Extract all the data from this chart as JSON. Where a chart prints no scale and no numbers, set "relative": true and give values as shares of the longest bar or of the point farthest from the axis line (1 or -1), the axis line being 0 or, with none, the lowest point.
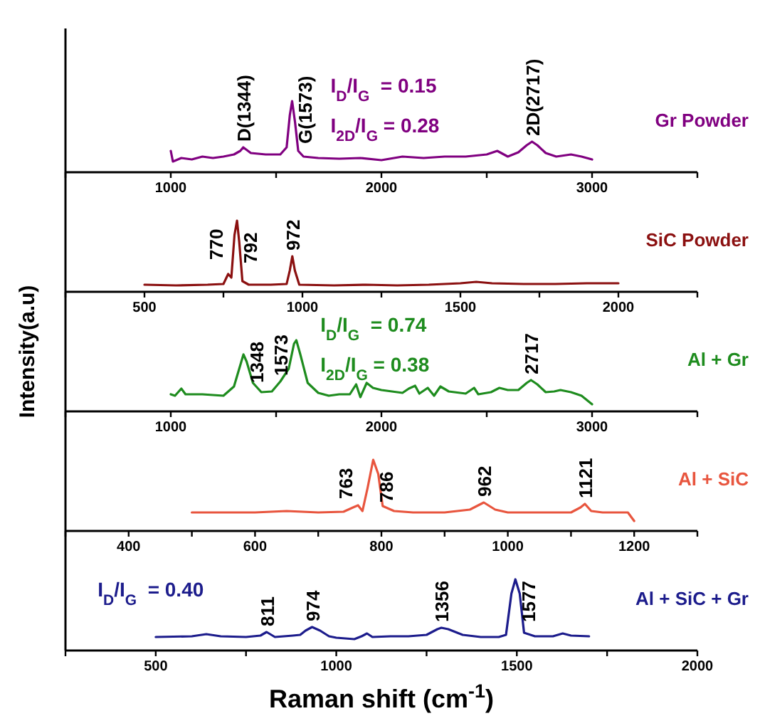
{
  "chart_data": [
    {
      "type": "line",
      "relative": true,
      "xlim": [
        500,
        3500
      ],
      "xticks": [
        {
          "value": 500,
          "label": null
        },
        1000,
        {
          "value": 1500,
          "label": null
        },
        2000,
        {
          "value": 2500,
          "label": null
        },
        3000,
        {
          "value": 3500,
          "label": null
        }
      ],
      "x": [
        1000,
        1010,
        1050,
        1100,
        1150,
        1200,
        1250,
        1300,
        1330,
        1344,
        1380,
        1450,
        1520,
        1550,
        1565,
        1576,
        1590,
        1605,
        1630,
        1700,
        1800,
        1900,
        2000,
        2100,
        2200,
        2300,
        2400,
        2500,
        2550,
        2600,
        2650,
        2690,
        2715,
        2740,
        2780,
        2830,
        2900,
        2950,
        3000
      ],
      "series": [
        {
          "name": "Gr Powder",
          "color": "#800080",
          "values": [
            0.3,
            0.15,
            0.2,
            0.18,
            0.22,
            0.2,
            0.22,
            0.25,
            0.3,
            0.35,
            0.27,
            0.25,
            0.25,
            0.35,
            0.8,
            1.0,
            0.7,
            0.3,
            0.22,
            0.2,
            0.19,
            0.2,
            0.17,
            0.22,
            0.2,
            0.22,
            0.22,
            0.25,
            0.3,
            0.22,
            0.28,
            0.38,
            0.43,
            0.38,
            0.27,
            0.22,
            0.25,
            0.22,
            0.18
          ]
        }
      ],
      "annotations": [
        {
          "text": "D(1344)",
          "x": 1344,
          "y": 0.35
        },
        {
          "text": "G(1573)",
          "x": 1576,
          "y": 1.0
        },
        {
          "text": "2D(2717)",
          "x": 2715,
          "y": 0.43
        },
        "I$_{D}$/I$_{G}$  = 0.15",
        "I$_{2D}$/I$_{G}$ = 0.28"
      ]
    },
    {
      "type": "line",
      "relative": true,
      "xlim": [
        250,
        2250
      ],
      "xticks": [
        {
          "value": 250,
          "label": null
        },
        500,
        {
          "value": 750,
          "label": null
        },
        1000,
        {
          "value": 1250,
          "label": null
        },
        1500,
        {
          "value": 1750,
          "label": null
        },
        2000,
        {
          "value": 2250,
          "label": null
        }
      ],
      "x": [
        500,
        600,
        700,
        750,
        765,
        775,
        785,
        793,
        800,
        810,
        830,
        900,
        950,
        960,
        968,
        976,
        990,
        1100,
        1200,
        1300,
        1400,
        1500,
        1550,
        1600,
        1700,
        1800,
        1900,
        2000
      ],
      "series": [
        {
          "name": "SiC Powder",
          "color": "#8b1010",
          "values": [
            0.1,
            0.09,
            0.1,
            0.11,
            0.25,
            0.2,
            0.8,
            1.0,
            0.7,
            0.15,
            0.1,
            0.1,
            0.11,
            0.3,
            0.5,
            0.3,
            0.1,
            0.09,
            0.1,
            0.09,
            0.1,
            0.12,
            0.14,
            0.12,
            0.11,
            0.11,
            0.12,
            0.12
          ]
        }
      ],
      "annotations": [
        {
          "text": "770",
          "x": 765,
          "y": 0.25
        },
        {
          "text": "792",
          "x": 793,
          "y": 1.0
        },
        {
          "text": "972",
          "x": 968,
          "y": 0.5
        }
      ]
    },
    {
      "type": "line",
      "relative": true,
      "xlim": [
        500,
        3500
      ],
      "xticks": [
        {
          "value": 500,
          "label": null
        },
        1000,
        {
          "value": 1500,
          "label": null
        },
        2000,
        {
          "value": 2500,
          "label": null
        },
        3000,
        {
          "value": 3500,
          "label": null
        }
      ],
      "ylabel": "Intensity(a.u)",
      "x": [
        1000,
        1020,
        1050,
        1070,
        1150,
        1200,
        1250,
        1300,
        1330,
        1345,
        1360,
        1390,
        1430,
        1480,
        1520,
        1560,
        1585,
        1596,
        1615,
        1650,
        1700,
        1750,
        1800,
        1850,
        1880,
        1900,
        1930,
        1960,
        2000,
        2050,
        2100,
        2130,
        2160,
        2180,
        2220,
        2250,
        2280,
        2320,
        2400,
        2440,
        2460,
        2520,
        2560,
        2600,
        2650,
        2690,
        2710,
        2740,
        2780,
        2820,
        2850,
        2900,
        2950,
        3000
      ],
      "series": [
        {
          "name": "Al + Gr",
          "color": "#1e8c1e",
          "values": [
            0.24,
            0.22,
            0.32,
            0.24,
            0.24,
            0.23,
            0.22,
            0.35,
            0.65,
            0.8,
            0.7,
            0.4,
            0.27,
            0.28,
            0.42,
            0.6,
            0.95,
            1.0,
            0.8,
            0.4,
            0.26,
            0.22,
            0.24,
            0.24,
            0.38,
            0.2,
            0.4,
            0.33,
            0.3,
            0.28,
            0.26,
            0.32,
            0.36,
            0.25,
            0.33,
            0.22,
            0.35,
            0.28,
            0.25,
            0.33,
            0.24,
            0.27,
            0.33,
            0.3,
            0.3,
            0.4,
            0.44,
            0.38,
            0.27,
            0.28,
            0.3,
            0.27,
            0.22,
            0.1
          ]
        }
      ],
      "annotations": [
        {
          "text": "1348",
          "x": 1345,
          "y": 0.8
        },
        {
          "text": "1573",
          "x": 1520,
          "y": 0.42
        },
        {
          "text": "2717",
          "x": 2710,
          "y": 0.44
        },
        "I$_{D}$/I$_{G}$  = 0.74",
        "I$_{2D}$/I$_{G}$ = 0.38"
      ]
    },
    {
      "type": "line",
      "relative": true,
      "xlim": [
        300,
        1300
      ],
      "xticks": [
        {
          "value": 300,
          "label": null
        },
        400,
        {
          "value": 500,
          "label": null
        },
        600,
        {
          "value": 700,
          "label": null
        },
        800,
        {
          "value": 900,
          "label": null
        },
        1000,
        {
          "value": 1100,
          "label": null
        },
        1200,
        {
          "value": 1300,
          "label": null
        }
      ],
      "x": [
        500,
        600,
        650,
        700,
        740,
        755,
        763,
        770,
        778,
        787,
        795,
        802,
        820,
        850,
        900,
        940,
        962,
        980,
        1000,
        1100,
        1115,
        1122,
        1132,
        1150,
        1190,
        1200
      ],
      "series": [
        {
          "name": "Al + SiC",
          "color": "#e8553e",
          "values": [
            0.26,
            0.26,
            0.28,
            0.26,
            0.27,
            0.33,
            0.36,
            0.28,
            0.6,
            1.0,
            0.8,
            0.35,
            0.28,
            0.26,
            0.26,
            0.3,
            0.4,
            0.3,
            0.26,
            0.26,
            0.33,
            0.38,
            0.28,
            0.26,
            0.26,
            0.14
          ]
        }
      ],
      "annotations": [
        {
          "text": "763",
          "x": 763,
          "y": 0.36
        },
        {
          "text": "786",
          "x": 787,
          "y": 1.0
        },
        {
          "text": "962",
          "x": 962,
          "y": 0.4
        },
        {
          "text": "1121",
          "x": 1122,
          "y": 0.38
        }
      ]
    },
    {
      "type": "line",
      "relative": true,
      "xlim": [
        250,
        2000
      ],
      "xticks": [
        {
          "value": 250,
          "label": null
        },
        500,
        {
          "value": 750,
          "label": null
        },
        1000,
        {
          "value": 1250,
          "label": null
        },
        1500,
        {
          "value": 1750,
          "label": null
        },
        2000
      ],
      "xlabel": "Raman shift (cm$^{-1}$)",
      "x": [
        500,
        600,
        640,
        680,
        750,
        790,
        807,
        830,
        880,
        900,
        915,
        933,
        955,
        980,
        1000,
        1050,
        1070,
        1085,
        1100,
        1150,
        1200,
        1250,
        1280,
        1291,
        1310,
        1350,
        1400,
        1450,
        1470,
        1485,
        1496,
        1508,
        1520,
        1550,
        1600,
        1627,
        1650,
        1700
      ],
      "series": [
        {
          "name": "Al + SiC + Gr",
          "color": "#1c1c8c",
          "values": [
            0.19,
            0.2,
            0.23,
            0.2,
            0.19,
            0.21,
            0.26,
            0.19,
            0.21,
            0.22,
            0.28,
            0.33,
            0.28,
            0.2,
            0.18,
            0.16,
            0.2,
            0.24,
            0.19,
            0.2,
            0.2,
            0.22,
            0.3,
            0.32,
            0.3,
            0.22,
            0.19,
            0.19,
            0.22,
            0.8,
            1.0,
            0.8,
            0.25,
            0.2,
            0.2,
            0.24,
            0.21,
            0.2
          ]
        }
      ],
      "annotations": [
        {
          "text": "811",
          "x": 807,
          "y": 0.26
        },
        {
          "text": "974",
          "x": 933,
          "y": 0.33
        },
        {
          "text": "1356",
          "x": 1291,
          "y": 0.32
        },
        {
          "text": "1577",
          "x": 1496,
          "y": 1.0
        },
        "I$_{D}$/I$_{G}$  = 0.40"
      ]
    }
  ]
}
